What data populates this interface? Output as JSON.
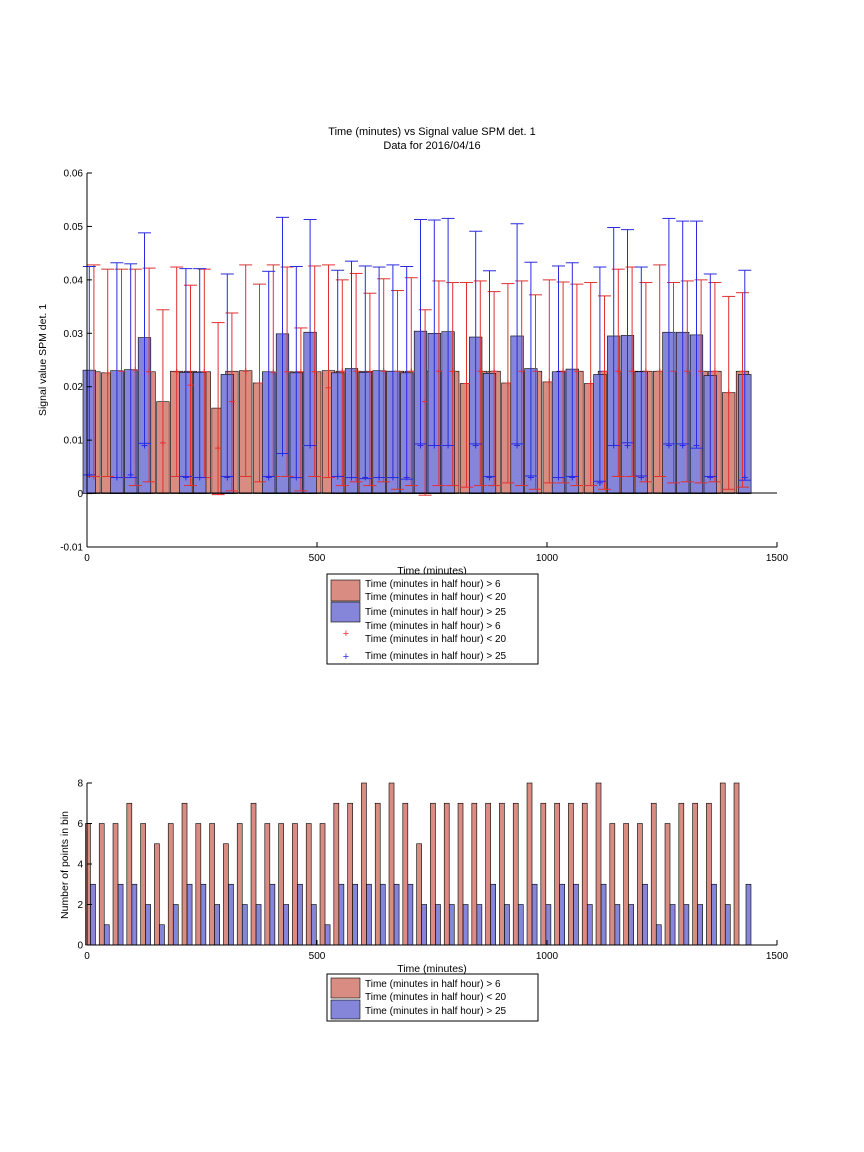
{
  "colors": {
    "red_bar": "#d98c82",
    "blue_bar": "#8585d9",
    "red_err": "#e03030",
    "blue_err": "#2a2ae0"
  },
  "chart_data": [
    {
      "type": "bar",
      "title": "Time (minutes) vs Signal value SPM det. 1",
      "subtitle": "Data for 2016/04/16",
      "xlabel": "Time (minutes)",
      "ylabel": "Signal value SPM det. 1",
      "xlim": [
        0,
        1500
      ],
      "ylim": [
        -0.01,
        0.06
      ],
      "xticks": [
        "0",
        "500",
        "1000",
        "1500"
      ],
      "yticks": [
        "-0.01",
        "0",
        "0.01",
        "0.02",
        "0.03",
        "0.04",
        "0.05",
        "0.06"
      ],
      "legend": {
        "placement": "below",
        "entries": [
          [
            "Time (minutes in half hour) > 6",
            "Time (minutes in half hour) < 20"
          ],
          [
            "Time (minutes in half hour) > 25"
          ],
          [
            "Time (minutes in half hour) > 6",
            "Time (minutes in half hour) < 20"
          ],
          [
            "Time (minutes in half hour) > 25"
          ]
        ]
      },
      "series": [
        {
          "name": "Time (minutes in half hour) > 6 Time (minutes in half hour) < 20",
          "x": [
            15,
            45,
            75,
            105,
            135,
            165,
            195,
            225,
            255,
            285,
            315,
            345,
            375,
            405,
            435,
            465,
            495,
            525,
            555,
            585,
            615,
            645,
            675,
            705,
            735,
            765,
            795,
            825,
            855,
            885,
            915,
            945,
            975,
            1005,
            1035,
            1065,
            1095,
            1125,
            1155,
            1185,
            1215,
            1245,
            1275,
            1305,
            1335,
            1365,
            1395,
            1425
          ],
          "values": [
            0.0228,
            0.0226,
            0.0229,
            0.0231,
            0.0228,
            0.0172,
            0.0229,
            0.0229,
            0.0228,
            0.016,
            0.0229,
            0.023,
            0.0207,
            0.0227,
            0.0228,
            0.0228,
            0.0228,
            0.023,
            0.0229,
            0.0229,
            0.0229,
            0.0229,
            0.0229,
            0.0229,
            0.0229,
            0.0229,
            0.0229,
            0.0206,
            0.0229,
            0.0229,
            0.0207,
            0.0229,
            0.0229,
            0.0209,
            0.0229,
            0.0229,
            0.0206,
            0.0229,
            0.0229,
            0.0229,
            0.0229,
            0.0229,
            0.0229,
            0.0229,
            0.0229,
            0.0229,
            0.0189,
            0.0229
          ],
          "err_upper": [
            0.0428,
            0.042,
            0.042,
            0.042,
            0.0422,
            0.0344,
            0.0424,
            0.039,
            0.042,
            0.032,
            0.0338,
            0.0428,
            0.0392,
            0.0428,
            0.0424,
            0.031,
            0.0426,
            0.0428,
            0.04,
            0.0412,
            0.0375,
            0.0402,
            0.038,
            0.0404,
            0.0344,
            0.0398,
            0.0395,
            0.0395,
            0.0398,
            0.0378,
            0.0393,
            0.0398,
            0.0372,
            0.04,
            0.0396,
            0.0392,
            0.0395,
            0.037,
            0.042,
            0.0424,
            0.0395,
            0.0428,
            0.0395,
            0.0398,
            0.04,
            0.0395,
            0.0369,
            0.0376
          ],
          "err_lower": [
            0.0032,
            0.0032,
            0.003,
            0.0015,
            0.0022,
            0.0001,
            0.0032,
            0.0015,
            0.003,
            -0.0002,
            0.0005,
            0.0032,
            0.0022,
            0.0032,
            0.0032,
            0.0005,
            0.0032,
            0.003,
            0.0015,
            0.0022,
            0.0015,
            0.0022,
            0.0008,
            0.0015,
            -0.0003,
            0.0015,
            0.0015,
            0.0012,
            0.0015,
            0.0015,
            0.002,
            0.0015,
            0.0008,
            0.002,
            0.002,
            0.0015,
            0.0015,
            0.0008,
            0.0032,
            0.0032,
            0.0022,
            0.0032,
            0.002,
            0.0022,
            0.002,
            0.0022,
            0.0008,
            0.0012
          ],
          "points": [
            0.0032,
            0.0226,
            0.0229,
            0.0231,
            0.0228,
            0.0095,
            0.0228,
            0.0203,
            0.0228,
            0.0085,
            0.0172,
            0.0229,
            0.0207,
            0.0227,
            0.0228,
            0.0228,
            0.0228,
            0.0198,
            0.0229,
            0.0229,
            0.0228,
            0.0229,
            0.0229,
            0.0229,
            0.0172,
            0.0229,
            0.0229,
            0.0206,
            0.0229,
            0.0229,
            0.0207,
            0.0229,
            0.0229,
            0.0209,
            0.0229,
            0.0229,
            0.0206,
            0.0229,
            0.0229,
            0.0229,
            0.0229,
            0.0229,
            0.0229,
            0.0229,
            0.0229,
            0.0229,
            0.0189,
            0.0229
          ]
        },
        {
          "name": "Time (minutes in half hour) > 25",
          "x": [
            5,
            35,
            65,
            95,
            125,
            155,
            185,
            215,
            245,
            275,
            305,
            335,
            365,
            395,
            425,
            455,
            485,
            515,
            545,
            575,
            605,
            635,
            665,
            695,
            725,
            755,
            785,
            815,
            845,
            875,
            905,
            935,
            965,
            995,
            1025,
            1055,
            1085,
            1115,
            1145,
            1175,
            1205,
            1235,
            1265,
            1295,
            1325,
            1355,
            1385,
            1415,
            1430
          ],
          "values": [
            0.0231,
            0.0,
            0.023,
            0.0232,
            0.0292,
            0.0,
            0.0,
            0.0227,
            0.0227,
            0.0,
            0.0223,
            0.0,
            0.0,
            0.0228,
            0.0299,
            0.0226,
            0.0302,
            0.0,
            0.0226,
            0.0234,
            0.0227,
            0.023,
            0.0229,
            0.0226,
            0.0304,
            0.03,
            0.0303,
            0.0,
            0.0293,
            0.0225,
            0.0,
            0.0295,
            0.0234,
            0.0,
            0.0228,
            0.0233,
            0.0,
            0.0223,
            0.0295,
            0.0296,
            0.0228,
            0.0,
            0.0302,
            0.0302,
            0.0297,
            0.0221,
            0.0,
            0.0,
            0.0223
          ],
          "err_upper": [
            0.0425,
            0.0,
            0.0432,
            0.043,
            0.0488,
            0.0,
            0.0,
            0.0421,
            0.0421,
            0.0,
            0.0411,
            0.0,
            0.0,
            0.0416,
            0.0517,
            0.0425,
            0.0513,
            0.0,
            0.0418,
            0.0435,
            0.0426,
            0.0424,
            0.0428,
            0.0425,
            0.0513,
            0.0512,
            0.0515,
            0.0,
            0.0491,
            0.0417,
            0.0,
            0.0505,
            0.0433,
            0.0,
            0.0426,
            0.0432,
            0.0,
            0.0424,
            0.0498,
            0.0494,
            0.0424,
            0.0,
            0.0515,
            0.051,
            0.051,
            0.0411,
            0.0,
            0.0,
            0.0418
          ],
          "err_lower": [
            0.0035,
            0.0,
            0.003,
            0.003,
            0.0094,
            0.0,
            0.0,
            0.0032,
            0.003,
            0.0,
            0.0032,
            0.0,
            0.0,
            0.0032,
            0.0075,
            0.003,
            0.009,
            0.0,
            0.0032,
            0.003,
            0.0028,
            0.003,
            0.003,
            0.0027,
            0.0093,
            0.009,
            0.009,
            0.0,
            0.0093,
            0.0032,
            0.0,
            0.0093,
            0.0033,
            0.0,
            0.003,
            0.0032,
            0.0,
            0.0023,
            0.009,
            0.0095,
            0.0033,
            0.0,
            0.0093,
            0.0093,
            0.0085,
            0.0032,
            0.0,
            0.0,
            0.0025
          ],
          "points": [
            0.0035,
            0.0,
            0.003,
            0.0035,
            0.009,
            0.0,
            0.0,
            0.003,
            0.003,
            0.0,
            0.003,
            0.0,
            0.0,
            0.003,
            0.0075,
            0.003,
            0.009,
            0.0,
            0.0032,
            0.003,
            0.003,
            0.003,
            0.003,
            0.003,
            0.009,
            0.009,
            0.009,
            0.0,
            0.009,
            0.003,
            0.0,
            0.009,
            0.003,
            0.0,
            0.003,
            0.003,
            0.0,
            0.002,
            0.009,
            0.009,
            0.003,
            0.0,
            0.009,
            0.009,
            0.009,
            0.003,
            0.0,
            0.0,
            0.003
          ]
        }
      ]
    },
    {
      "type": "bar",
      "xlabel": "Time (minutes)",
      "ylabel": "Number of points in bin",
      "xlim": [
        0,
        1500
      ],
      "ylim": [
        0,
        8
      ],
      "xticks": [
        "0",
        "500",
        "1000",
        "1500"
      ],
      "yticks": [
        "0",
        "2",
        "4",
        "6",
        "8"
      ],
      "legend": {
        "placement": "below",
        "entries": [
          [
            "Time (minutes in half hour) > 6",
            "Time (minutes in half hour) < 20"
          ],
          [
            "Time (minutes in half hour) > 25"
          ]
        ]
      },
      "series": [
        {
          "name": "Time (minutes in half hour) > 6 Time (minutes in half hour) < 20",
          "x": [
            2,
            32,
            62,
            92,
            122,
            152,
            182,
            212,
            242,
            272,
            302,
            332,
            362,
            392,
            422,
            452,
            482,
            512,
            542,
            572,
            602,
            632,
            662,
            692,
            722,
            752,
            782,
            812,
            842,
            872,
            902,
            932,
            962,
            992,
            1022,
            1052,
            1082,
            1112,
            1142,
            1172,
            1202,
            1232,
            1262,
            1292,
            1322,
            1352,
            1382,
            1412
          ],
          "values": [
            6,
            6,
            6,
            7,
            6,
            5,
            6,
            7,
            6,
            6,
            5,
            6,
            7,
            6,
            6,
            6,
            6,
            6,
            7,
            7,
            8,
            7,
            8,
            7,
            5,
            7,
            7,
            7,
            7,
            7,
            7,
            7,
            8,
            7,
            7,
            7,
            7,
            8,
            6,
            6,
            6,
            7,
            6,
            7,
            7,
            7,
            8,
            8
          ]
        },
        {
          "name": "Time (minutes in half hour) > 25",
          "x": [
            13,
            43,
            73,
            103,
            133,
            163,
            193,
            223,
            253,
            283,
            313,
            343,
            373,
            403,
            433,
            463,
            493,
            523,
            553,
            583,
            613,
            643,
            673,
            703,
            733,
            763,
            793,
            823,
            853,
            883,
            913,
            943,
            973,
            1003,
            1033,
            1063,
            1093,
            1123,
            1153,
            1183,
            1213,
            1243,
            1273,
            1303,
            1333,
            1363,
            1393,
            1423,
            1438
          ],
          "values": [
            3,
            1,
            3,
            3,
            2,
            1,
            2,
            3,
            3,
            2,
            3,
            2,
            2,
            3,
            2,
            3,
            2,
            1,
            3,
            3,
            3,
            3,
            3,
            3,
            2,
            2,
            2,
            2,
            2,
            3,
            2,
            2,
            3,
            2,
            3,
            3,
            2,
            3,
            2,
            2,
            3,
            1,
            2,
            2,
            2,
            3,
            2,
            0,
            3
          ]
        }
      ]
    }
  ]
}
